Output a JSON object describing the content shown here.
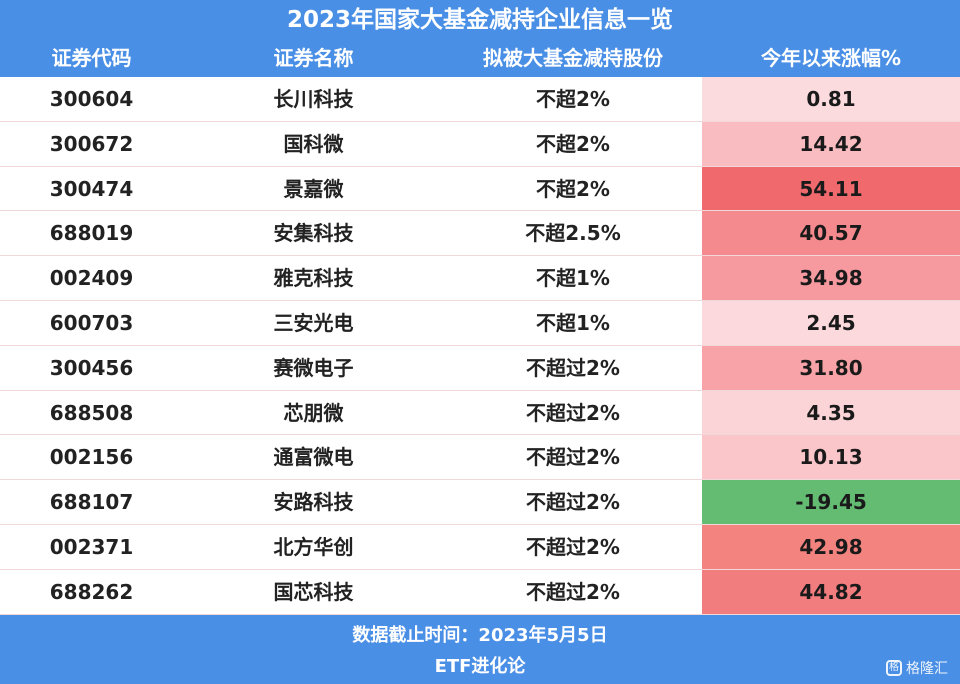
{
  "title": "2023年国家大基金减持企业信息一览",
  "columns": [
    "证券代码",
    "证券名称",
    "拟被大基金减持股份",
    "今年以来涨幅%"
  ],
  "rows": [
    {
      "code": "300604",
      "name": "长川科技",
      "share": "不超2%",
      "change": "0.81",
      "color": "#fbdbde"
    },
    {
      "code": "300672",
      "name": "国科微",
      "share": "不超2%",
      "change": "14.42",
      "color": "#f9bcc1"
    },
    {
      "code": "300474",
      "name": "景嘉微",
      "share": "不超2%",
      "change": "54.11",
      "color": "#f0696d"
    },
    {
      "code": "688019",
      "name": "安集科技",
      "share": "不超2.5%",
      "change": "40.57",
      "color": "#f48a8e"
    },
    {
      "code": "002409",
      "name": "雅克科技",
      "share": "不超1%",
      "change": "34.98",
      "color": "#f69a9f"
    },
    {
      "code": "600703",
      "name": "三安光电",
      "share": "不超1%",
      "change": "2.45",
      "color": "#fbd9dc"
    },
    {
      "code": "300456",
      "name": "赛微电子",
      "share": "不超过2%",
      "change": "31.80",
      "color": "#f7a3a7"
    },
    {
      "code": "688508",
      "name": "芯朋微",
      "share": "不超过2%",
      "change": "4.35",
      "color": "#fbd4d7"
    },
    {
      "code": "002156",
      "name": "通富微电",
      "share": "不超过2%",
      "change": "10.13",
      "color": "#fac6ca"
    },
    {
      "code": "688107",
      "name": "安路科技",
      "share": "不超过2%",
      "change": "-19.45",
      "color": "#63bc72"
    },
    {
      "code": "002371",
      "name": "北方华创",
      "share": "不超过2%",
      "change": "42.98",
      "color": "#f3837f"
    },
    {
      "code": "688262",
      "name": "国芯科技",
      "share": "不超过2%",
      "change": "44.82",
      "color": "#f27d7f"
    }
  ],
  "footer": {
    "date_line": "数据截止时间：2023年5月5日",
    "source": "ETF进化论",
    "watermark": "格隆汇"
  }
}
